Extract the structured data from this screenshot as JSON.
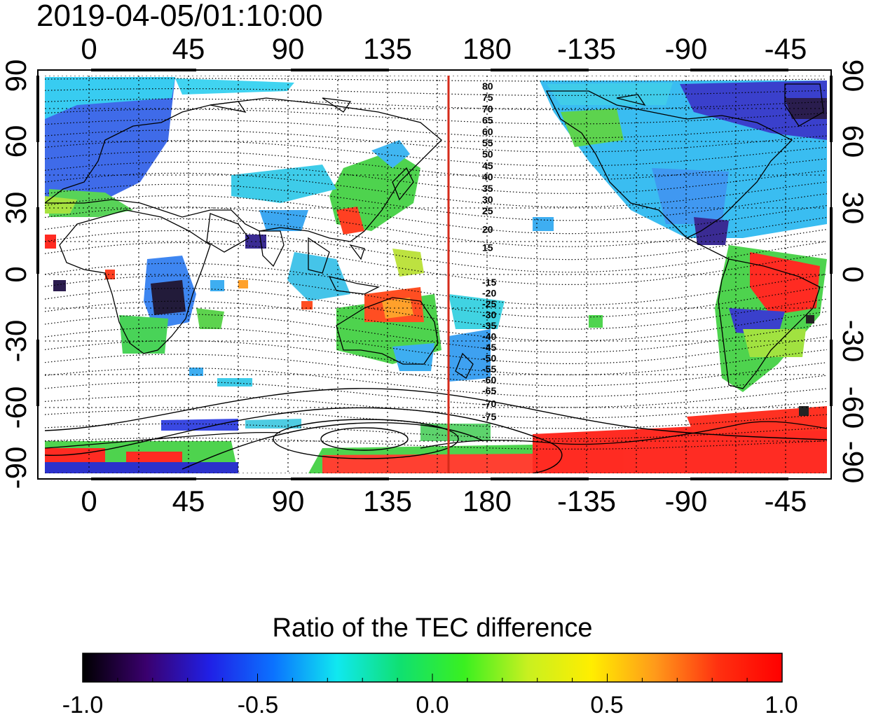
{
  "title": "2019-04-05/01:10:00",
  "map": {
    "lon_ticks": [
      "0",
      "45",
      "90",
      "135",
      "180",
      "-135",
      "-90",
      "-45"
    ],
    "lat_ticks_left": [
      "90",
      "60",
      "30",
      "0",
      "-30",
      "-60",
      "-90"
    ],
    "lat_ticks_right": [
      "90",
      "60",
      "30",
      "0",
      "-30",
      "-60",
      "-90"
    ],
    "marker_line": {
      "color": "#d42a1a",
      "longitude": 165
    },
    "contour_labels_north": [
      "80",
      "75",
      "70",
      "65",
      "60",
      "55",
      "50",
      "45",
      "40",
      "35",
      "30",
      "25",
      "20",
      "15"
    ],
    "contour_labels_south": [
      "-15",
      "-20",
      "-25",
      "-30",
      "-35",
      "-40",
      "-45",
      "-50",
      "-55",
      "-60",
      "-65",
      "-70",
      "-75"
    ]
  },
  "colorbar": {
    "title": "Ratio of the TEC difference",
    "ticks": [
      "-1.0",
      "-0.5",
      "0.0",
      "0.5",
      "1.0"
    ],
    "colors": [
      "#000000",
      "#3a006e",
      "#2020e6",
      "#0b72ff",
      "#10e8f0",
      "#10e070",
      "#3af020",
      "#c8f020",
      "#ffee00",
      "#ff9a1a",
      "#ff3010",
      "#ff0000"
    ]
  }
}
